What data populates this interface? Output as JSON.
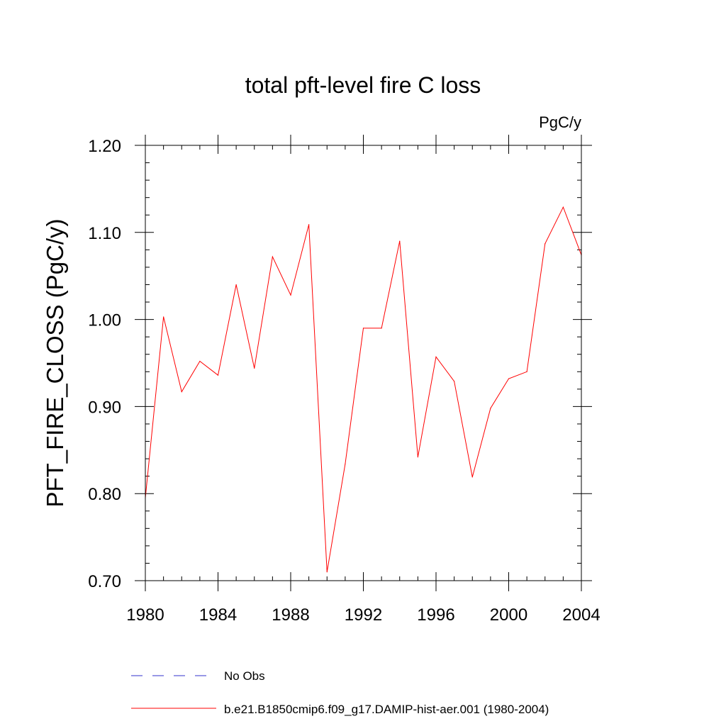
{
  "chart_data": {
    "type": "line",
    "title": "total pft-level fire C loss",
    "units": "PgC/y",
    "xlabel": "",
    "ylabel": "PFT_FIRE_CLOSS  (PgC/y)",
    "xlim": [
      1980,
      2004
    ],
    "ylim": [
      0.7,
      1.2
    ],
    "x_ticks": [
      1980,
      1984,
      1988,
      1992,
      1996,
      2000,
      2004
    ],
    "x_tick_labels": [
      "1980",
      "1984",
      "1988",
      "1992",
      "1996",
      "2000",
      "2004"
    ],
    "y_ticks": [
      0.7,
      0.8,
      0.9,
      1.0,
      1.1,
      1.2
    ],
    "y_tick_labels": [
      "0.70",
      "0.80",
      "0.90",
      "1.00",
      "1.10",
      "1.20"
    ],
    "grid": false,
    "legend_position": "bottom",
    "series": [
      {
        "name": "b.e21.B1850cmip6.f09_g17.DAMIP-hist-aer.001 (1980-2004)",
        "color": "#ff0000",
        "dash": "solid",
        "x": [
          1980,
          1981,
          1982,
          1983,
          1984,
          1985,
          1986,
          1987,
          1988,
          1989,
          1990,
          1991,
          1992,
          1993,
          1994,
          1995,
          1996,
          1997,
          1998,
          1999,
          2000,
          2001,
          2002,
          2003,
          2004
        ],
        "y": [
          0.795,
          1.003,
          0.917,
          0.952,
          0.936,
          1.04,
          0.944,
          1.072,
          1.028,
          1.109,
          0.71,
          0.834,
          0.99,
          0.99,
          1.09,
          0.842,
          0.957,
          0.929,
          0.819,
          0.898,
          0.932,
          0.94,
          1.087,
          1.129,
          1.074
        ]
      }
    ],
    "legend": [
      {
        "label": "No Obs",
        "color": "#3333cc",
        "dash": "dashed"
      },
      {
        "label": "b.e21.B1850cmip6.f09_g17.DAMIP-hist-aer.001 (1980-2004)",
        "color": "#ff0000",
        "dash": "solid"
      }
    ]
  }
}
